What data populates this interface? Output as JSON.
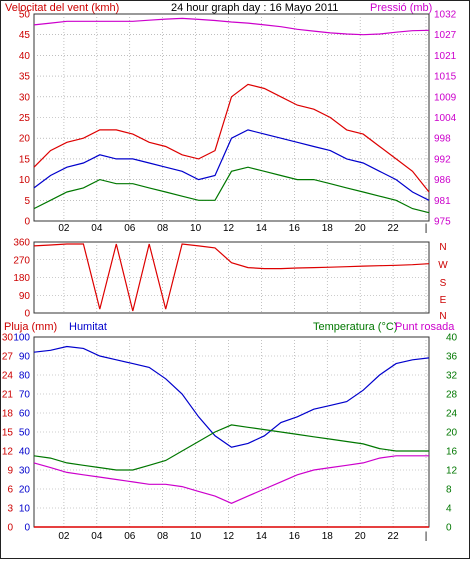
{
  "header": {
    "title": "24 hour graph day : 16 Mayo 2011",
    "left_label": "Velocitat del vent (kmh)",
    "right_label": "Pressió (mb)"
  },
  "direction_panel": {
    "compass_labels": [
      "N",
      "W",
      "S",
      "E",
      "N"
    ]
  },
  "bottom_panel": {
    "rain_label": "Pluja (mm)",
    "humidity_label": "Humitat",
    "temp_label": "Temperatura (°C)",
    "dew_label": "Punt rosada"
  },
  "colors": {
    "wind_gust": "#dd0000",
    "wind_avg": "#0000cc",
    "wind_low": "#007700",
    "pressure": "#cc00cc",
    "direction": "#dd0000",
    "humidity": "#0000cc",
    "temperature": "#007700",
    "dewpoint": "#cc00cc",
    "rain": "#dd0000",
    "grid": "#999999",
    "frame": "#333333"
  },
  "chart_data": [
    {
      "type": "line",
      "title": "24 hour graph day : 16 Mayo 2011",
      "x_ticks": [
        "02",
        "04",
        "06",
        "08",
        "10",
        "12",
        "14",
        "16",
        "18",
        "20",
        "22",
        "|"
      ],
      "hours": [
        0,
        1,
        2,
        3,
        4,
        5,
        6,
        7,
        8,
        9,
        10,
        11,
        12,
        13,
        14,
        15,
        16,
        17,
        18,
        19,
        20,
        21,
        22,
        23,
        24
      ],
      "left_axis": {
        "label": "Velocitat del vent (kmh)",
        "ylim": [
          0,
          50
        ],
        "ticks": [
          "0",
          "5",
          "10",
          "15",
          "20",
          "25",
          "30",
          "35",
          "40",
          "45",
          "50"
        ]
      },
      "right_axis": {
        "label": "Pressió (mb)",
        "ylim": [
          975,
          1032
        ],
        "ticks": [
          "975",
          "981",
          "986",
          "992",
          "998",
          "1004",
          "1009",
          "1015",
          "1021",
          "1027",
          "1032"
        ]
      },
      "series": [
        {
          "key": "gust",
          "values": [
            13,
            17,
            19,
            20,
            22,
            22,
            21,
            19,
            18,
            16,
            15,
            17,
            30,
            33,
            32,
            30,
            28,
            27,
            25,
            22,
            21,
            18,
            15,
            12,
            7
          ]
        },
        {
          "key": "avg",
          "values": [
            8,
            11,
            13,
            14,
            16,
            15,
            15,
            14,
            13,
            12,
            10,
            11,
            20,
            22,
            21,
            20,
            19,
            18,
            17,
            15,
            14,
            12,
            10,
            7,
            5
          ]
        },
        {
          "key": "low",
          "values": [
            3,
            5,
            7,
            8,
            10,
            9,
            9,
            8,
            7,
            6,
            5,
            5,
            12,
            13,
            12,
            11,
            10,
            10,
            9,
            8,
            7,
            6,
            5,
            3,
            2
          ]
        },
        {
          "key": "pressure",
          "axis": "right",
          "values": [
            1029,
            1029.5,
            1030,
            1030,
            1030,
            1030,
            1030,
            1030.3,
            1030.6,
            1030.8,
            1030.5,
            1030.2,
            1029.8,
            1029.5,
            1029,
            1028.5,
            1027.8,
            1027.3,
            1026.8,
            1026.5,
            1026.3,
            1026.5,
            1027,
            1027.4,
            1027.5
          ]
        }
      ]
    },
    {
      "type": "line",
      "title": "",
      "x_ticks": [
        "02",
        "04",
        "06",
        "08",
        "10",
        "12",
        "14",
        "16",
        "18",
        "20",
        "22",
        "|"
      ],
      "hours": [
        0,
        1,
        2,
        3,
        4,
        5,
        6,
        7,
        8,
        9,
        10,
        11,
        12,
        13,
        14,
        15,
        16,
        17,
        18,
        19,
        20,
        21,
        22,
        23,
        24
      ],
      "left_axis": {
        "ylim": [
          0,
          360
        ],
        "ticks": [
          "0",
          "90",
          "180",
          "270",
          "360"
        ]
      },
      "series": [
        {
          "key": "direction",
          "values": [
            340,
            345,
            350,
            350,
            20,
            350,
            10,
            350,
            20,
            350,
            340,
            330,
            255,
            230,
            225,
            225,
            228,
            230,
            232,
            235,
            238,
            240,
            242,
            245,
            250
          ]
        }
      ]
    },
    {
      "type": "line",
      "title": "",
      "x_ticks": [
        "02",
        "04",
        "06",
        "08",
        "10",
        "12",
        "14",
        "16",
        "18",
        "20",
        "22",
        "|"
      ],
      "hours": [
        0,
        1,
        2,
        3,
        4,
        5,
        6,
        7,
        8,
        9,
        10,
        11,
        12,
        13,
        14,
        15,
        16,
        17,
        18,
        19,
        20,
        21,
        22,
        23,
        24
      ],
      "left_axis": {
        "label": "Pluja (mm)",
        "ylim": [
          0,
          30
        ],
        "ticks": [
          "0",
          "3",
          "6",
          "9",
          "12",
          "15",
          "18",
          "21",
          "24",
          "27",
          "30"
        ]
      },
      "humidity_axis": {
        "label": "Humitat",
        "ylim": [
          0,
          100
        ],
        "ticks": [
          "0",
          "10",
          "20",
          "30",
          "40",
          "50",
          "60",
          "70",
          "80",
          "90",
          "100"
        ]
      },
      "right_axis": {
        "label": "Temperatura (°C)",
        "ylim": [
          0,
          40
        ],
        "ticks": [
          "0",
          "4",
          "8",
          "12",
          "16",
          "20",
          "24",
          "28",
          "32",
          "36",
          "40"
        ]
      },
      "series": [
        {
          "key": "humidity",
          "axis": "humidity",
          "values": [
            92,
            93,
            95,
            94,
            90,
            88,
            86,
            84,
            78,
            70,
            58,
            48,
            42,
            44,
            48,
            55,
            58,
            62,
            64,
            66,
            72,
            80,
            86,
            88,
            89
          ]
        },
        {
          "key": "temperature",
          "axis": "right",
          "values": [
            15,
            14.5,
            13.5,
            13,
            12.5,
            12,
            12,
            13,
            14,
            16,
            18,
            20,
            21.5,
            21,
            20.5,
            20,
            19.5,
            19,
            18.5,
            18,
            17.5,
            16.5,
            16,
            16,
            16
          ]
        },
        {
          "key": "dewpoint",
          "axis": "right",
          "values": [
            13.5,
            12.5,
            11.5,
            11,
            10.5,
            10,
            9.5,
            9,
            9,
            8.5,
            7.5,
            6.5,
            5,
            6.5,
            8,
            9.5,
            11,
            12,
            12.5,
            13,
            13.5,
            14.5,
            15,
            15,
            15
          ]
        },
        {
          "key": "rain",
          "axis": "left",
          "values": [
            0,
            0,
            0,
            0,
            0,
            0,
            0,
            0,
            0,
            0,
            0,
            0,
            0,
            0,
            0,
            0,
            0,
            0,
            0,
            0,
            0,
            0,
            0,
            0,
            0
          ]
        }
      ]
    }
  ]
}
